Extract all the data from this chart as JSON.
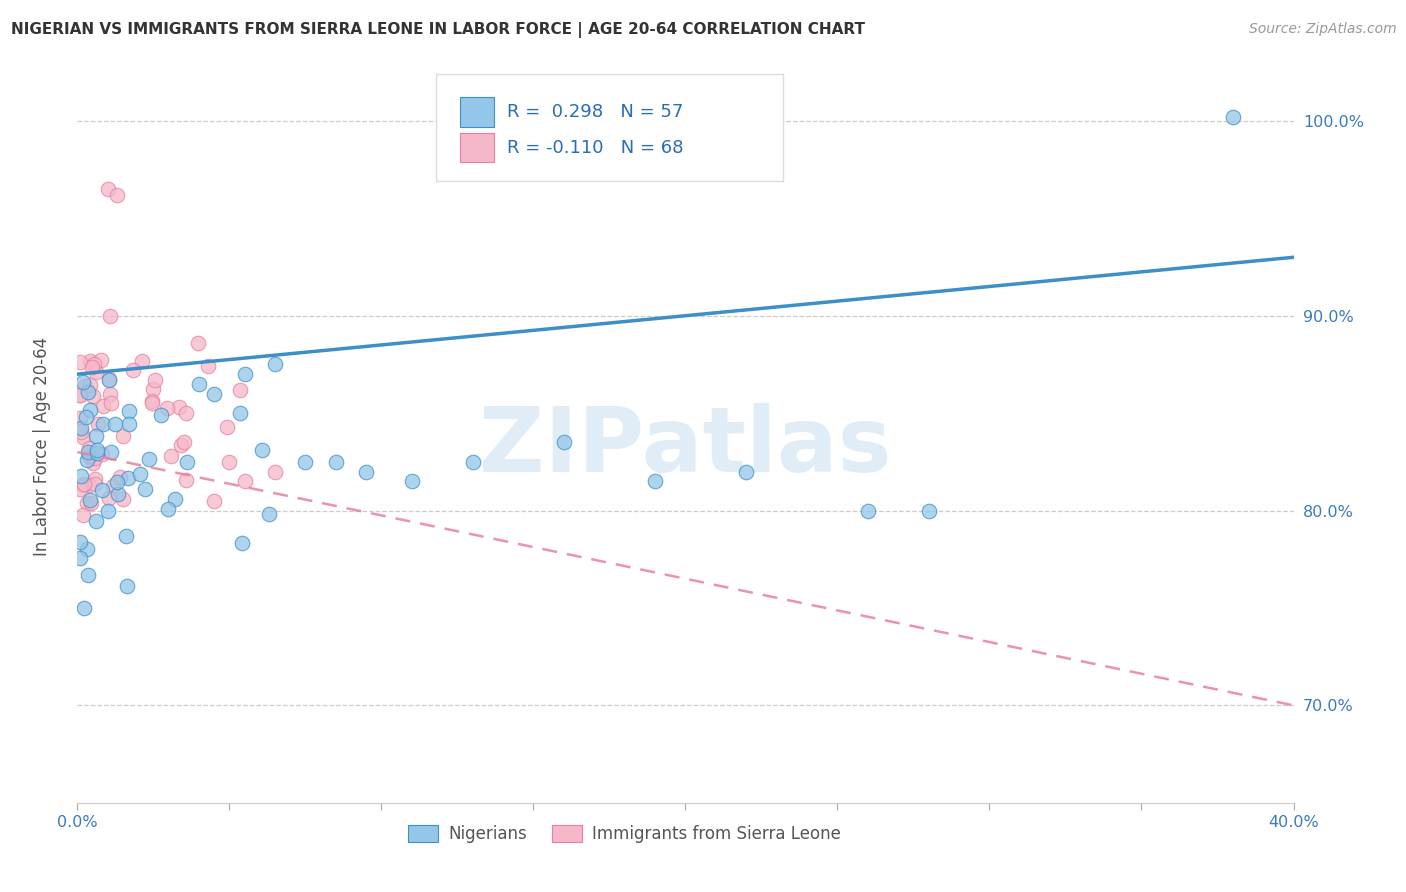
{
  "title": "NIGERIAN VS IMMIGRANTS FROM SIERRA LEONE IN LABOR FORCE | AGE 20-64 CORRELATION CHART",
  "source": "Source: ZipAtlas.com",
  "ylabel": "In Labor Force | Age 20-64",
  "xlim": [
    0.0,
    0.4
  ],
  "ylim": [
    0.65,
    1.03
  ],
  "ytick_vals": [
    0.7,
    0.8,
    0.9,
    1.0
  ],
  "ytick_labels": [
    "70.0%",
    "80.0%",
    "90.0%",
    "100.0%"
  ],
  "xtick_vals": [
    0.0,
    0.05,
    0.1,
    0.15,
    0.2,
    0.25,
    0.3,
    0.35,
    0.4
  ],
  "xtick_labels": [
    "0.0%",
    "",
    "",
    "",
    "",
    "",
    "",
    "",
    "40.0%"
  ],
  "blue_color": "#93c6e8",
  "pink_color": "#f5b8c8",
  "blue_line_color": "#3d8fc7",
  "pink_line_color": "#e87fa0",
  "blue_R": 0.298,
  "blue_N": 57,
  "pink_R": -0.11,
  "pink_N": 68,
  "legend_label_blue": "Nigerians",
  "legend_label_pink": "Immigrants from Sierra Leone",
  "watermark": "ZIPatlas",
  "blue_line_y0": 0.87,
  "blue_line_y1": 0.93,
  "pink_line_y0": 0.83,
  "pink_line_y1": 0.7
}
